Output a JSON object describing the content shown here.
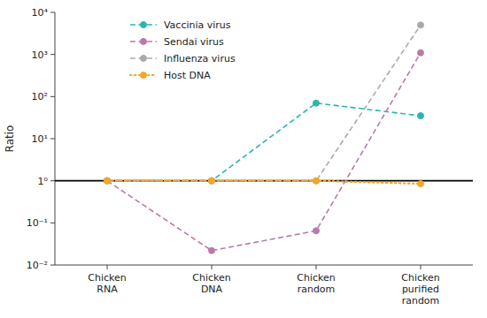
{
  "chart_data": {
    "type": "line",
    "y_label": "Ratio",
    "categories": [
      "Chicken\nRNA",
      "Chicken\nDNA",
      "Chicken\nrandom",
      "Chicken\npurified\nrandom"
    ],
    "series": [
      {
        "name": "Vaccinia virus",
        "color": "#2ab5b0",
        "values": [
          1.0,
          1.0,
          70.0,
          35.0
        ],
        "line_style": "dashed",
        "marker": "circle"
      },
      {
        "name": "Sendai virus",
        "color": "#b87aaa",
        "values": [
          1.0,
          0.022,
          0.065,
          1100.0
        ],
        "line_style": "dashed",
        "marker": "circle"
      },
      {
        "name": "Influenza virus",
        "color": "#aaaaaa",
        "values": [
          1.0,
          1.0,
          1.0,
          5000.0
        ],
        "line_style": "dashed",
        "marker": "circle"
      },
      {
        "name": "Host DNA",
        "color": "#f5a623",
        "values": [
          1.0,
          1.0,
          1.0,
          0.85
        ],
        "line_style": "dotted",
        "marker": "circle"
      }
    ],
    "hline": {
      "value": 1.0,
      "color": "#000000"
    },
    "log": "y",
    "ylim": [
      0.01,
      10000
    ],
    "yticks": [
      {
        "value": 0.01,
        "label": "10⁻²"
      },
      {
        "value": 0.1,
        "label": "10⁻¹"
      },
      {
        "value": 1.0,
        "label": "1⁰"
      },
      {
        "value": 10,
        "label": "10¹"
      },
      {
        "value": 100,
        "label": "10²"
      },
      {
        "value": 1000,
        "label": "10³"
      },
      {
        "value": 10000,
        "label": "10⁴"
      }
    ],
    "grid": false,
    "legend": "upper left"
  }
}
